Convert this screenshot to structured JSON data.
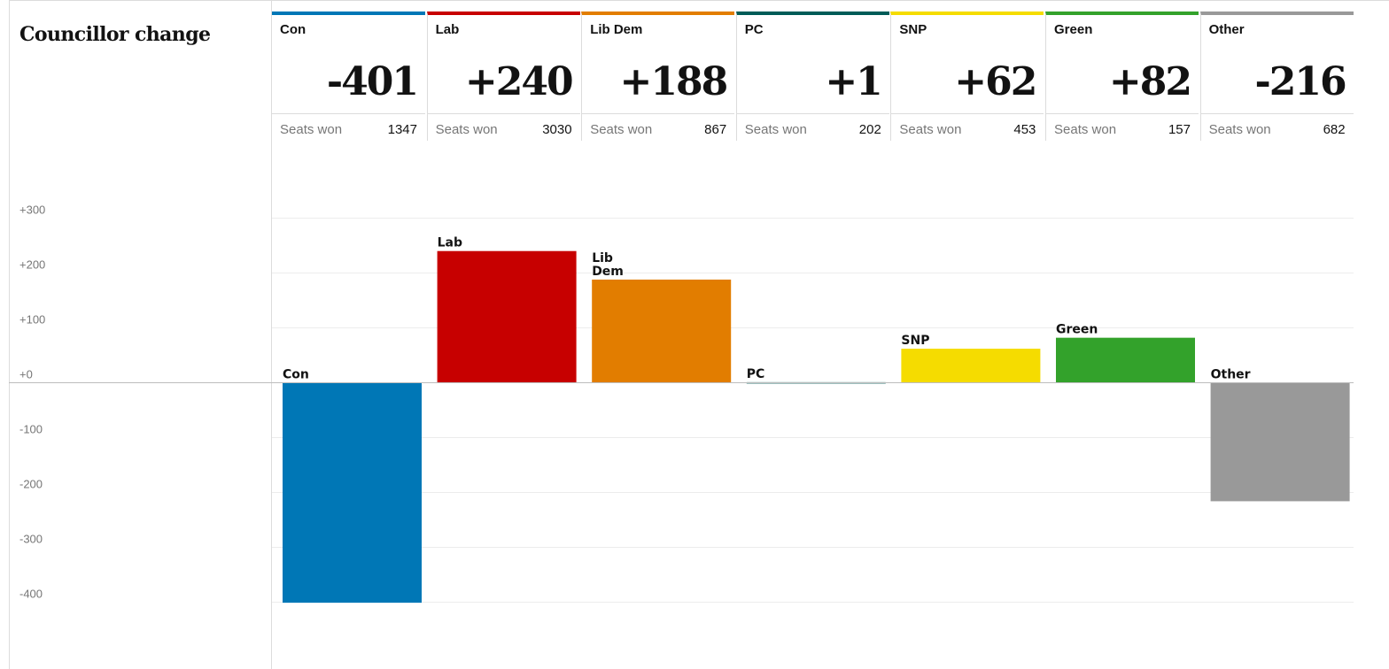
{
  "title": "Councillor change",
  "seats_label": "Seats won",
  "parties": [
    {
      "name": "Con",
      "change_text": "-401",
      "seats": "1347",
      "color": "#0077b6"
    },
    {
      "name": "Lab",
      "change_text": "+240",
      "seats": "3030",
      "color": "#c70000"
    },
    {
      "name": "Lib Dem",
      "change_text": "+188",
      "seats": "867",
      "color": "#e27d00"
    },
    {
      "name": "PC",
      "change_text": "+1",
      "seats": "202",
      "color": "#005c58"
    },
    {
      "name": "SNP",
      "change_text": "+62",
      "seats": "453",
      "color": "#f5dc00"
    },
    {
      "name": "Green",
      "change_text": "+82",
      "seats": "157",
      "color": "#33a22b"
    },
    {
      "name": "Other",
      "change_text": "-216",
      "seats": "682",
      "color": "#999999"
    }
  ],
  "chart_data": {
    "type": "bar",
    "categories": [
      "Con",
      "Lab",
      "Lib Dem",
      "PC",
      "SNP",
      "Green",
      "Other"
    ],
    "bar_labels": [
      "Con",
      "Lab",
      "Lib\nDem",
      "PC",
      "SNP",
      "Green",
      "Other"
    ],
    "values": [
      -401,
      240,
      188,
      1,
      62,
      82,
      -216
    ],
    "colors": [
      "#0077b6",
      "#c70000",
      "#e27d00",
      "#005c58",
      "#f5dc00",
      "#33a22b",
      "#999999"
    ],
    "ylim": [
      -400,
      300
    ],
    "yticks": [
      300,
      200,
      100,
      0,
      -100,
      -200,
      -300,
      -400
    ],
    "ytick_labels": [
      "+300",
      "+200",
      "+100",
      "+0",
      "-100",
      "-200",
      "-300",
      "-400"
    ],
    "grid": true,
    "title": "Councillor change",
    "xlabel": "",
    "ylabel": ""
  }
}
